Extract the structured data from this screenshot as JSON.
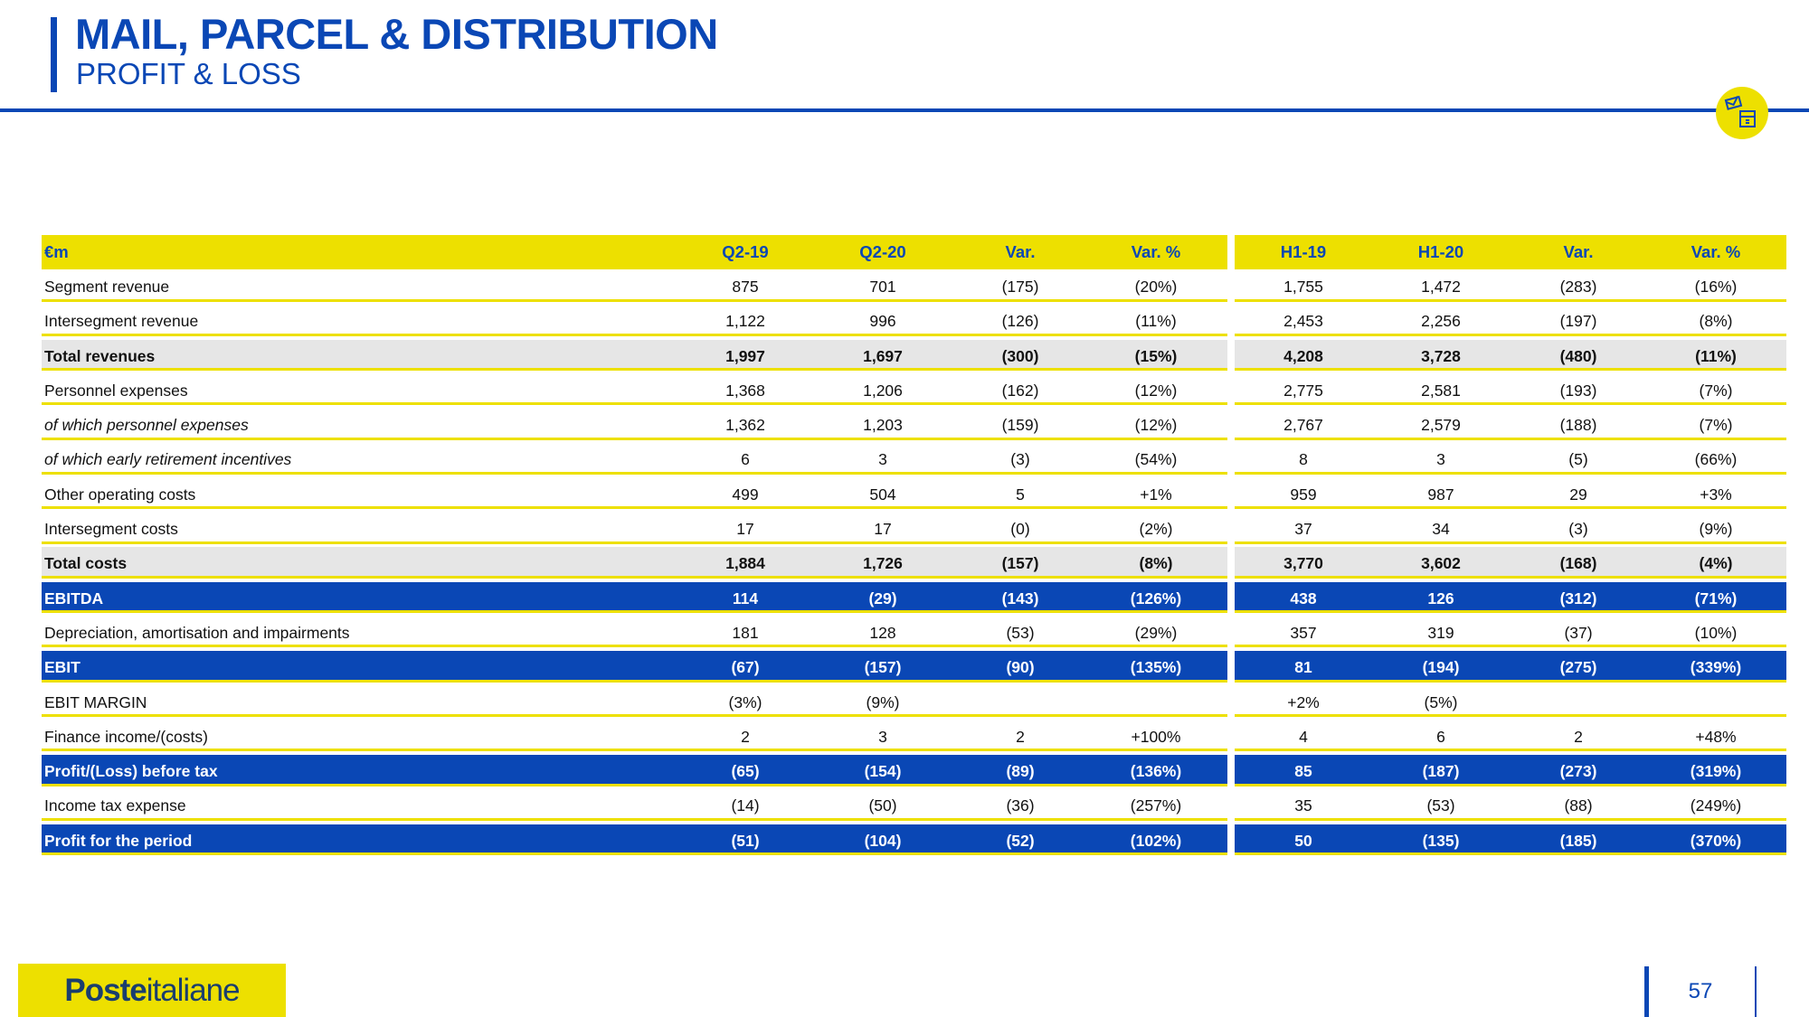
{
  "header": {
    "title": "MAIL, PARCEL & DISTRIBUTION",
    "subtitle": "PROFIT & LOSS",
    "icon": "mail-parcel-icon"
  },
  "colors": {
    "blue": "#0a47b5",
    "yellow": "#ede000",
    "grey": "#e6e6e6"
  },
  "table": {
    "columns": [
      "€m",
      "Q2-19",
      "Q2-20",
      "Var.",
      "Var. %",
      "H1-19",
      "H1-20",
      "Var.",
      "Var. %"
    ],
    "rows": [
      {
        "style": "normal",
        "cells": [
          "Segment revenue",
          "875",
          "701",
          "(175)",
          "(20%)",
          "1,755",
          "1,472",
          "(283)",
          "(16%)"
        ]
      },
      {
        "style": "normal",
        "cells": [
          "Intersegment revenue",
          "1,122",
          "996",
          "(126)",
          "(11%)",
          "2,453",
          "2,256",
          "(197)",
          "(8%)"
        ]
      },
      {
        "style": "bold",
        "cells": [
          "Total revenues",
          "1,997",
          "1,697",
          "(300)",
          "(15%)",
          "4,208",
          "3,728",
          "(480)",
          "(11%)"
        ]
      },
      {
        "style": "normal",
        "cells": [
          "Personnel expenses",
          "1,368",
          "1,206",
          "(162)",
          "(12%)",
          "2,775",
          "2,581",
          "(193)",
          "(7%)"
        ]
      },
      {
        "style": "italic",
        "cells": [
          "of which personnel expenses",
          "1,362",
          "1,203",
          "(159)",
          "(12%)",
          "2,767",
          "2,579",
          "(188)",
          "(7%)"
        ]
      },
      {
        "style": "italic",
        "cells": [
          "of which early retirement incentives",
          "6",
          "3",
          "(3)",
          "(54%)",
          "8",
          "3",
          "(5)",
          "(66%)"
        ]
      },
      {
        "style": "normal",
        "cells": [
          "Other operating costs",
          "499",
          "504",
          "5",
          "+1%",
          "959",
          "987",
          "29",
          "+3%"
        ]
      },
      {
        "style": "normal",
        "cells": [
          "Intersegment costs",
          "17",
          "17",
          "(0)",
          "(2%)",
          "37",
          "34",
          "(3)",
          "(9%)"
        ]
      },
      {
        "style": "bold",
        "cells": [
          "Total costs",
          "1,884",
          "1,726",
          "(157)",
          "(8%)",
          "3,770",
          "3,602",
          "(168)",
          "(4%)"
        ]
      },
      {
        "style": "blue",
        "cells": [
          "EBITDA",
          "114",
          "(29)",
          "(143)",
          "(126%)",
          "438",
          "126",
          "(312)",
          "(71%)"
        ]
      },
      {
        "style": "normal",
        "cells": [
          "Depreciation, amortisation and impairments",
          "181",
          "128",
          "(53)",
          "(29%)",
          "357",
          "319",
          "(37)",
          "(10%)"
        ]
      },
      {
        "style": "blue",
        "cells": [
          "EBIT",
          "(67)",
          "(157)",
          "(90)",
          "(135%)",
          "81",
          "(194)",
          "(275)",
          "(339%)"
        ]
      },
      {
        "style": "normal",
        "cells": [
          "EBIT MARGIN",
          "(3%)",
          "(9%)",
          "",
          "",
          "+2%",
          "(5%)",
          "",
          ""
        ]
      },
      {
        "style": "normal",
        "cells": [
          "Finance income/(costs)",
          "2",
          "3",
          "2",
          "+100%",
          "4",
          "6",
          "2",
          "+48%"
        ]
      },
      {
        "style": "blue",
        "cells": [
          "Profit/(Loss) before tax",
          "(65)",
          "(154)",
          "(89)",
          "(136%)",
          "85",
          "(187)",
          "(273)",
          "(319%)"
        ]
      },
      {
        "style": "normal",
        "cells": [
          "Income tax expense",
          "(14)",
          "(50)",
          "(36)",
          "(257%)",
          "35",
          "(53)",
          "(88)",
          "(249%)"
        ]
      },
      {
        "style": "blue",
        "cells": [
          "Profit for the period",
          "(51)",
          "(104)",
          "(52)",
          "(102%)",
          "50",
          "(135)",
          "(185)",
          "(370%)"
        ]
      }
    ]
  },
  "footer": {
    "logo_bold": "Poste",
    "logo_rest": "italiane",
    "page_number": "57"
  }
}
